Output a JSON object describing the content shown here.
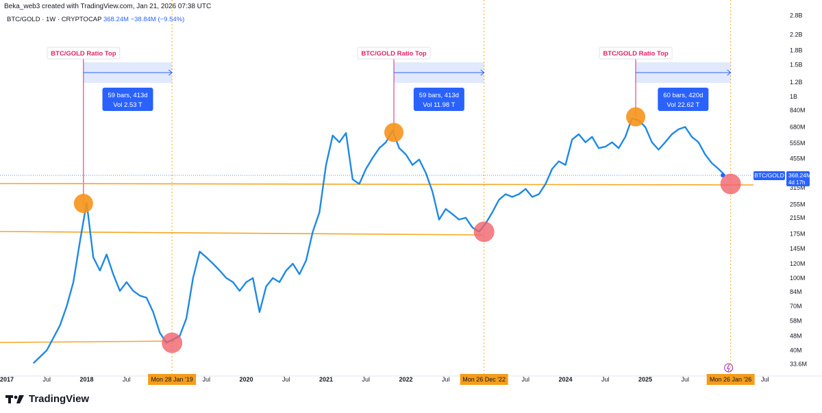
{
  "header": {
    "created_by": "Beka_web3 created with TradingView.com, Jan 21, 2026 07:38 UTC"
  },
  "symbol": {
    "name": "BTC/GOLD · 1W · CRYPTOCAP",
    "value": "368.24M",
    "change": "−38.84M (−9.54%)"
  },
  "colors": {
    "price_line": "#1e88e5",
    "price_line_dark": "#2962ff",
    "support_line": "#f5a623",
    "top_marker": "#f7931a",
    "bottom_marker": "#f0636b",
    "annotation_label": "#e91e63",
    "range_fill": "#2962ff",
    "vertical_top": "#e91e63",
    "vertical_bottom": "#f5a623"
  },
  "chart_data": {
    "type": "line",
    "title": "",
    "xlabel": "",
    "ylabel": "",
    "scale": "log",
    "x_ticks": [
      "2017",
      "Jul",
      "2018",
      "Jul",
      "Jul",
      "2020",
      "Jul",
      "2021",
      "Jul",
      "2022",
      "Jul",
      "Jul",
      "2024",
      "Jul",
      "2025",
      "Jul",
      "Jul"
    ],
    "date_labels": [
      "Mon 28 Jan '19",
      "Mon 26 Dec '22",
      "Mon 26 Jan '26"
    ],
    "y_ticks": [
      "2.8B",
      "2.2B",
      "1.8B",
      "1.5B",
      "1.2B",
      "1B",
      "840M",
      "680M",
      "555M",
      "455M",
      "315M",
      "255M",
      "215M",
      "175M",
      "145M",
      "120M",
      "100M",
      "84M",
      "70M",
      "58M",
      "48M",
      "40M",
      "33.6M"
    ],
    "ylim": [
      "33.6M",
      "2.8B"
    ],
    "series": [
      {
        "name": "BTC/GOLD",
        "x": [
          "2017-05",
          "2017-07",
          "2017-09",
          "2017-10",
          "2017-11",
          "2017-12",
          "2018-01",
          "2018-02",
          "2018-03",
          "2018-04",
          "2018-05",
          "2018-06",
          "2018-07",
          "2018-08",
          "2018-09",
          "2018-10",
          "2018-11",
          "2018-12",
          "2019-01",
          "2019-02",
          "2019-03",
          "2019-04",
          "2019-05",
          "2019-06",
          "2019-07",
          "2019-08",
          "2019-09",
          "2019-10",
          "2019-11",
          "2019-12",
          "2020-01",
          "2020-02",
          "2020-03",
          "2020-04",
          "2020-05",
          "2020-06",
          "2020-07",
          "2020-08",
          "2020-09",
          "2020-10",
          "2020-11",
          "2020-12",
          "2021-01",
          "2021-02",
          "2021-03",
          "2021-04",
          "2021-05",
          "2021-06",
          "2021-07",
          "2021-08",
          "2021-09",
          "2021-10",
          "2021-11",
          "2021-12",
          "2022-01",
          "2022-02",
          "2022-03",
          "2022-04",
          "2022-05",
          "2022-06",
          "2022-07",
          "2022-08",
          "2022-09",
          "2022-10",
          "2022-11",
          "2022-12",
          "2023-01",
          "2023-02",
          "2023-03",
          "2023-04",
          "2023-05",
          "2023-06",
          "2023-07",
          "2023-08",
          "2023-09",
          "2023-10",
          "2023-11",
          "2023-12",
          "2024-01",
          "2024-02",
          "2024-03",
          "2024-04",
          "2024-05",
          "2024-06",
          "2024-07",
          "2024-08",
          "2024-09",
          "2024-10",
          "2024-11",
          "2024-12",
          "2025-01",
          "2025-02",
          "2025-03",
          "2025-04",
          "2025-05",
          "2025-06",
          "2025-07",
          "2025-08",
          "2025-09",
          "2025-10",
          "2025-11",
          "2025-12",
          "2026-01"
        ],
        "values": [
          34,
          40,
          55,
          70,
          95,
          160,
          260,
          130,
          110,
          135,
          105,
          85,
          95,
          85,
          80,
          78,
          65,
          50,
          44,
          46,
          48,
          60,
          100,
          140,
          130,
          120,
          110,
          100,
          95,
          85,
          95,
          100,
          65,
          90,
          100,
          95,
          110,
          120,
          105,
          125,
          180,
          230,
          420,
          610,
          560,
          630,
          350,
          330,
          400,
          460,
          520,
          560,
          650,
          520,
          480,
          420,
          450,
          380,
          300,
          210,
          240,
          225,
          210,
          215,
          190,
          180,
          200,
          230,
          270,
          290,
          280,
          290,
          310,
          280,
          290,
          330,
          400,
          440,
          420,
          580,
          620,
          560,
          600,
          520,
          530,
          560,
          520,
          600,
          760,
          740,
          680,
          560,
          510,
          560,
          620,
          660,
          680,
          600,
          560,
          480,
          430,
          400,
          368
        ]
      }
    ],
    "annotations": [
      {
        "label": "BTC/GOLD Ratio Top",
        "bars": "59 bars, 413d",
        "vol": "Vol 2.53 T"
      },
      {
        "label": "BTC/GOLD Ratio Top",
        "bars": "59 bars, 413d",
        "vol": "Vol 11.98 T"
      },
      {
        "label": "BTC/GOLD Ratio Top",
        "bars": "60 bars, 420d",
        "vol": "Vol 22.62 T"
      }
    ],
    "price_label": {
      "name": "BTC/GOLD",
      "value": "368.24M",
      "countdown": "4d 17h"
    },
    "grid": false,
    "legend": "top-left"
  },
  "footer": {
    "brand": "TradingView"
  }
}
